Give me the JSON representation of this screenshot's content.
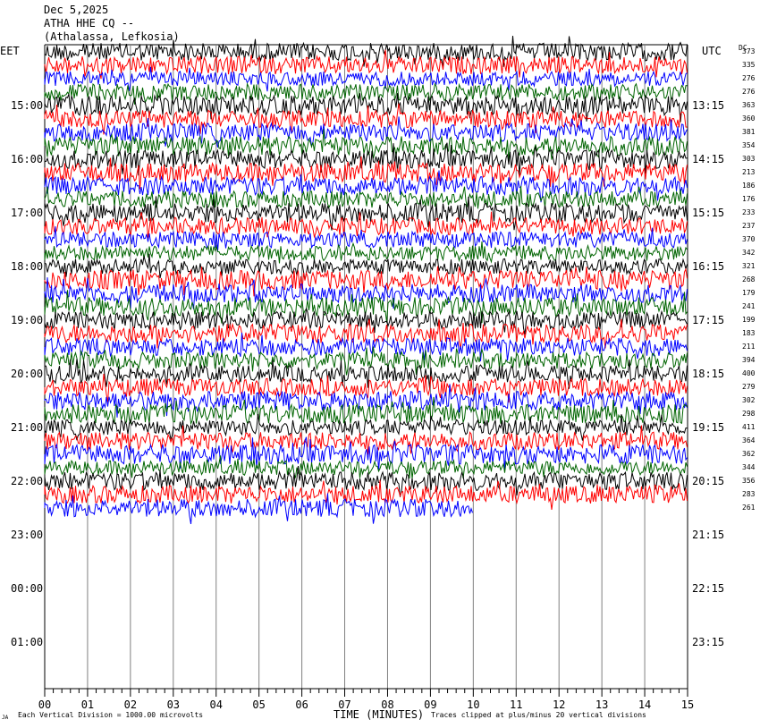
{
  "header": {
    "date": "Dec 5,2025",
    "station": "ATHA HHE CQ --",
    "location": "(Athalassa, Lefkosia)"
  },
  "left_axis_title": "EET",
  "right_axis_title": "UTC",
  "dc_title": "DC",
  "footer": {
    "corner": "JA",
    "vertical_division": "Each Vertical Division = 1000.00 microvolts",
    "x_title": "TIME (MINUTES)",
    "clip_note": "Traces clipped at plus/minus 20 vertical divisions"
  },
  "colors": {
    "trace_cycle": [
      "#000000",
      "#ff0000",
      "#0000ff",
      "#006400"
    ],
    "grid": "#808080"
  },
  "chart_data": {
    "type": "line",
    "subtype": "helicorder",
    "x_ticks": [
      "00",
      "01",
      "02",
      "03",
      "04",
      "05",
      "06",
      "07",
      "08",
      "09",
      "10",
      "11",
      "12",
      "13",
      "14",
      "15"
    ],
    "x_range": [
      0,
      15
    ],
    "left_hour_labels": [
      "15:00",
      "16:00",
      "17:00",
      "18:00",
      "19:00",
      "20:00",
      "21:00",
      "22:00",
      "23:00",
      "00:00",
      "01:00"
    ],
    "right_hour_labels": [
      "13:15",
      "14:15",
      "15:15",
      "16:15",
      "17:15",
      "18:15",
      "19:15",
      "20:15",
      "21:15",
      "22:15",
      "23:15"
    ],
    "dc_offsets": [
      373,
      335,
      276,
      276,
      363,
      360,
      381,
      354,
      303,
      213,
      186,
      176,
      233,
      237,
      370,
      342,
      321,
      268,
      179,
      241,
      199,
      183,
      211,
      394,
      400,
      279,
      302,
      298,
      411,
      364,
      362,
      344,
      356,
      283,
      261
    ],
    "traces_per_hour": 4,
    "last_trace_end_minute": 10,
    "grid": true
  }
}
